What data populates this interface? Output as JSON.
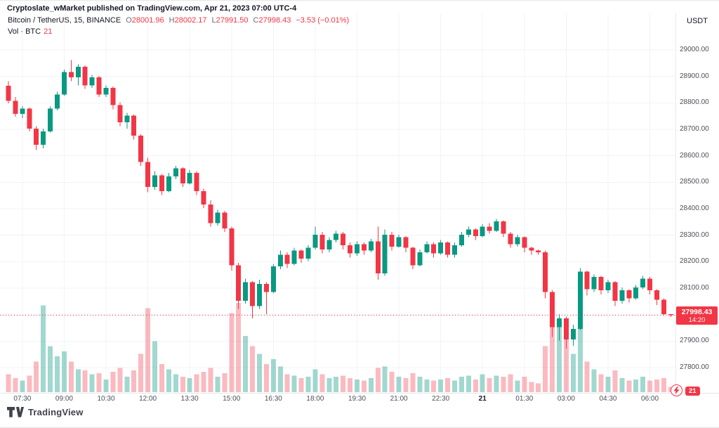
{
  "header": {
    "attribution": "Cryptoslate_wMarket published on TradingView.com, Apr 21, 2023 07:00 UTC-4"
  },
  "legend": {
    "title": "Bitcoin / TetherUS, 15, BINANCE",
    "o_label": "O",
    "o_value": "28001.96",
    "h_label": "H",
    "h_value": "28002.17",
    "l_label": "L",
    "l_value": "27991.50",
    "c_label": "C",
    "c_value": "27998.43",
    "change": "−3.53 (−0.01%)",
    "vol_label": "Vol · BTC",
    "vol_value": "21"
  },
  "axes": {
    "currency_label": "USDT"
  },
  "price_badge": {
    "price": "27998.43",
    "countdown": "14:20"
  },
  "volume_badge": "21",
  "footer": {
    "brand": "TradingView"
  },
  "colors": {
    "up": "#089981",
    "down": "#F23645",
    "volume_up": "rgba(8,153,129,0.38)",
    "volume_down": "rgba(242,54,69,0.34)",
    "grid": "#F0F3FA",
    "axis_text": "#4C4F59",
    "badge_bg": "#F23645",
    "text": "#131722"
  },
  "chart_data": {
    "type": "candlestick",
    "title": "Bitcoin / TetherUS, 15, BINANCE",
    "symbol": "Bitcoin / TetherUS",
    "interval": "15",
    "exchange": "BINANCE",
    "quote_currency": "USDT",
    "last_price": 27998.43,
    "ohlc_current": {
      "open": 28001.96,
      "high": 28002.17,
      "low": 27991.5,
      "close": 27998.43,
      "change": -3.53,
      "change_pct": -0.01
    },
    "volume_current_btc": 21,
    "y_axis": {
      "min": 27800,
      "max": 29000,
      "ticks": [
        29000,
        28900,
        28800,
        28700,
        28600,
        28500,
        28400,
        28300,
        28200,
        28100,
        28000,
        27900,
        27800
      ]
    },
    "x_ticks": [
      {
        "label": "07:30",
        "i": 2
      },
      {
        "label": "09:00",
        "i": 8
      },
      {
        "label": "10:30",
        "i": 14
      },
      {
        "label": "12:00",
        "i": 20
      },
      {
        "label": "13:30",
        "i": 26
      },
      {
        "label": "15:00",
        "i": 32
      },
      {
        "label": "16:30",
        "i": 38
      },
      {
        "label": "18:00",
        "i": 44
      },
      {
        "label": "19:30",
        "i": 50
      },
      {
        "label": "21:00",
        "i": 56
      },
      {
        "label": "22:30",
        "i": 62
      },
      {
        "label": "21",
        "i": 68,
        "em": true
      },
      {
        "label": "01:30",
        "i": 74
      },
      {
        "label": "03:00",
        "i": 80
      },
      {
        "label": "04:30",
        "i": 86
      },
      {
        "label": "06:00",
        "i": 92
      }
    ],
    "candles": [
      [
        "07:00",
        28865,
        28882,
        28798,
        28808,
        70
      ],
      [
        "07:15",
        28808,
        28822,
        28748,
        28758,
        55
      ],
      [
        "07:30",
        28758,
        28788,
        28742,
        28778,
        45
      ],
      [
        "07:45",
        28778,
        28782,
        28692,
        28702,
        65
      ],
      [
        "08:00",
        28702,
        28712,
        28622,
        28642,
        120
      ],
      [
        "08:15",
        28642,
        28702,
        28628,
        28692,
        340
      ],
      [
        "08:30",
        28692,
        28786,
        28688,
        28778,
        180
      ],
      [
        "08:45",
        28778,
        28842,
        28772,
        28832,
        140
      ],
      [
        "09:00",
        28832,
        28926,
        28826,
        28916,
        160
      ],
      [
        "09:15",
        28916,
        28962,
        28882,
        28896,
        120
      ],
      [
        "09:30",
        28896,
        28946,
        28866,
        28936,
        90
      ],
      [
        "09:45",
        28936,
        28942,
        28852,
        28866,
        85
      ],
      [
        "10:00",
        28866,
        28906,
        28856,
        28896,
        70
      ],
      [
        "10:15",
        28896,
        28902,
        28822,
        28832,
        75
      ],
      [
        "10:30",
        28832,
        28866,
        28822,
        28856,
        50
      ],
      [
        "10:45",
        28856,
        28862,
        28776,
        28792,
        80
      ],
      [
        "11:00",
        28792,
        28802,
        28712,
        28726,
        95
      ],
      [
        "11:15",
        28726,
        28762,
        28702,
        28752,
        60
      ],
      [
        "11:30",
        28752,
        28756,
        28662,
        28676,
        85
      ],
      [
        "11:45",
        28676,
        28682,
        28562,
        28576,
        150
      ],
      [
        "12:00",
        28576,
        28592,
        28462,
        28482,
        330
      ],
      [
        "12:15",
        28482,
        28542,
        28472,
        28526,
        200
      ],
      [
        "12:30",
        28526,
        28532,
        28452,
        28466,
        110
      ],
      [
        "12:45",
        28466,
        28536,
        28462,
        28522,
        90
      ],
      [
        "13:00",
        28522,
        28562,
        28512,
        28552,
        70
      ],
      [
        "13:15",
        28552,
        28556,
        28482,
        28496,
        60
      ],
      [
        "13:30",
        28496,
        28546,
        28492,
        28536,
        55
      ],
      [
        "13:45",
        28536,
        28542,
        28452,
        28466,
        70
      ],
      [
        "14:00",
        28466,
        28476,
        28402,
        28416,
        80
      ],
      [
        "14:15",
        28416,
        28432,
        28332,
        28346,
        95
      ],
      [
        "14:30",
        28346,
        28396,
        28336,
        28386,
        60
      ],
      [
        "14:45",
        28386,
        28392,
        28312,
        28326,
        75
      ],
      [
        "15:00",
        28326,
        28332,
        28166,
        28186,
        310
      ],
      [
        "15:15",
        28186,
        28196,
        28022,
        28052,
        350
      ],
      [
        "15:30",
        28052,
        28136,
        28042,
        28122,
        220
      ],
      [
        "15:45",
        28122,
        28126,
        27986,
        28032,
        180
      ],
      [
        "16:00",
        28032,
        28132,
        28022,
        28116,
        150
      ],
      [
        "16:15",
        28116,
        28122,
        28002,
        28086,
        110
      ],
      [
        "16:30",
        28086,
        28192,
        28082,
        28182,
        130
      ],
      [
        "16:45",
        28182,
        28242,
        28172,
        28226,
        100
      ],
      [
        "17:00",
        28226,
        28236,
        28176,
        28192,
        70
      ],
      [
        "17:15",
        28192,
        28252,
        28186,
        28242,
        65
      ],
      [
        "17:30",
        28242,
        28246,
        28196,
        28212,
        55
      ],
      [
        "17:45",
        28212,
        28262,
        28202,
        28252,
        60
      ],
      [
        "18:00",
        28252,
        28332,
        28246,
        28302,
        90
      ],
      [
        "18:15",
        28302,
        28312,
        28232,
        28246,
        70
      ],
      [
        "18:30",
        28246,
        28292,
        28236,
        28282,
        55
      ],
      [
        "18:45",
        28282,
        28316,
        28272,
        28306,
        60
      ],
      [
        "19:00",
        28306,
        28312,
        28246,
        28262,
        65
      ],
      [
        "19:15",
        28262,
        28272,
        28216,
        28232,
        55
      ],
      [
        "19:30",
        28232,
        28276,
        28222,
        28266,
        50
      ],
      [
        "19:45",
        28266,
        28272,
        28226,
        28242,
        45
      ],
      [
        "20:00",
        28242,
        28286,
        28236,
        28276,
        55
      ],
      [
        "20:15",
        28276,
        28332,
        28132,
        28156,
        95
      ],
      [
        "20:30",
        28156,
        28322,
        28146,
        28302,
        100
      ],
      [
        "20:45",
        28302,
        28312,
        28242,
        28256,
        80
      ],
      [
        "21:00",
        28256,
        28302,
        28252,
        28292,
        60
      ],
      [
        "21:15",
        28292,
        28296,
        28236,
        28252,
        55
      ],
      [
        "21:30",
        28252,
        28256,
        28172,
        28186,
        75
      ],
      [
        "21:45",
        28186,
        28246,
        28182,
        28236,
        60
      ],
      [
        "22:00",
        28236,
        28276,
        28232,
        28266,
        50
      ],
      [
        "22:15",
        28266,
        28272,
        28216,
        28232,
        45
      ],
      [
        "22:30",
        28232,
        28282,
        28226,
        28272,
        50
      ],
      [
        "22:45",
        28272,
        28276,
        28216,
        28226,
        55
      ],
      [
        "23:00",
        28226,
        28272,
        28216,
        28262,
        45
      ],
      [
        "23:15",
        28262,
        28312,
        28256,
        28302,
        60
      ],
      [
        "23:30",
        28302,
        28332,
        28292,
        28322,
        65
      ],
      [
        "23:45",
        28322,
        28326,
        28282,
        28296,
        50
      ],
      [
        "00:00",
        28296,
        28342,
        28292,
        28332,
        70
      ],
      [
        "00:15",
        28332,
        28346,
        28306,
        28316,
        55
      ],
      [
        "00:30",
        28316,
        28362,
        28312,
        28352,
        65
      ],
      [
        "00:45",
        28352,
        28356,
        28292,
        28306,
        60
      ],
      [
        "01:00",
        28306,
        28312,
        28252,
        28266,
        70
      ],
      [
        "01:15",
        28266,
        28302,
        28256,
        28292,
        45
      ],
      [
        "01:30",
        28292,
        28296,
        28236,
        28252,
        60
      ],
      [
        "01:45",
        28252,
        28256,
        28226,
        28242,
        40
      ],
      [
        "02:00",
        28242,
        28246,
        28226,
        28236,
        35
      ],
      [
        "02:15",
        28236,
        28242,
        28062,
        28086,
        180
      ],
      [
        "02:30",
        28086,
        28092,
        27916,
        27952,
        330
      ],
      [
        "02:45",
        27952,
        28002,
        27902,
        27986,
        280
      ],
      [
        "03:00",
        27986,
        27992,
        27872,
        27906,
        250
      ],
      [
        "03:15",
        27906,
        27962,
        27882,
        27946,
        150
      ],
      [
        "03:30",
        27946,
        28176,
        27942,
        28162,
        260
      ],
      [
        "03:45",
        28162,
        28166,
        28072,
        28096,
        120
      ],
      [
        "04:00",
        28096,
        28152,
        28086,
        28142,
        90
      ],
      [
        "04:15",
        28142,
        28146,
        28076,
        28092,
        70
      ],
      [
        "04:30",
        28092,
        28132,
        28082,
        28122,
        60
      ],
      [
        "04:45",
        28122,
        28126,
        28032,
        28052,
        85
      ],
      [
        "05:00",
        28052,
        28102,
        28042,
        28092,
        55
      ],
      [
        "05:15",
        28092,
        28096,
        28046,
        28062,
        45
      ],
      [
        "05:30",
        28062,
        28112,
        28056,
        28102,
        50
      ],
      [
        "05:45",
        28102,
        28146,
        28096,
        28136,
        60
      ],
      [
        "06:00",
        28136,
        28142,
        28076,
        28092,
        45
      ],
      [
        "06:15",
        28092,
        28096,
        28036,
        28056,
        50
      ],
      [
        "06:30",
        28056,
        28062,
        27998,
        28002,
        55
      ],
      [
        "06:45",
        28001.96,
        28002.17,
        27991.5,
        27998.43,
        21
      ]
    ]
  }
}
